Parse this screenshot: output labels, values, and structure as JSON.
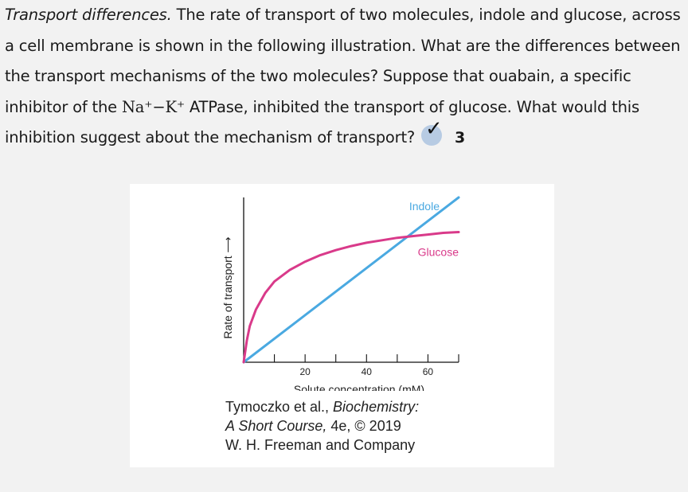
{
  "question": {
    "lead": "Transport differences.",
    "part1": " The rate of transport of two molecules, indole and glucose, across a cell membrane is shown in the following illustration. What are the differences between the transport mechanisms of the two molecules? Suppose that ouabain, a specific inhibitor of the ",
    "formula": "Na⁺−K⁺",
    "part2": " ATPase, inhibited the transport of glucose. What would this inhibition suggest about the mechanism of transport?",
    "badge_icon": "check-icon",
    "badge_count": "3"
  },
  "chart_data": {
    "type": "line",
    "title": "",
    "xlabel": "Solute concentration (mM)",
    "ylabel": "Rate of transport ⟶",
    "xlim": [
      0,
      70
    ],
    "ylim": [
      0,
      100
    ],
    "x_ticks": [
      20,
      40,
      60
    ],
    "series": [
      {
        "name": "Indole",
        "color": "#4aa9e1",
        "x": [
          0,
          70
        ],
        "y": [
          0,
          100
        ]
      },
      {
        "name": "Glucose",
        "color": "#d93a8a",
        "x": [
          0,
          1,
          2,
          4,
          7,
          10,
          15,
          20,
          25,
          30,
          35,
          40,
          45,
          50,
          55,
          60,
          65,
          70
        ],
        "y": [
          0,
          13,
          22,
          32,
          42,
          49,
          56,
          61,
          65,
          68,
          70.5,
          72.5,
          74,
          75.5,
          76.5,
          77.5,
          78.5,
          79
        ]
      }
    ]
  },
  "credit": {
    "line1": "Tymoczko et al., ",
    "line1_italic": "Biochemistry:",
    "line2_italic": "A Short Course,",
    "line2": " 4e, © 2019",
    "line3": "W. H. Freeman and Company"
  }
}
